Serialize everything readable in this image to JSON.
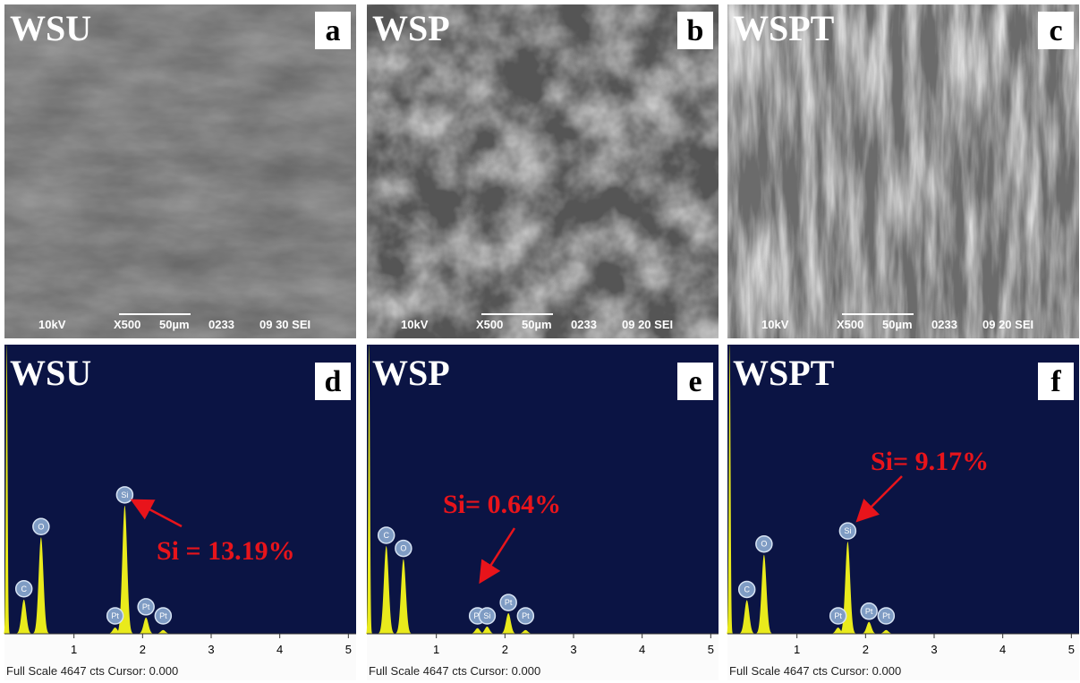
{
  "figure": {
    "sem_panels": [
      {
        "letter": "a",
        "sample": "WSU",
        "caption": [
          "10kV",
          "X500",
          "50µm",
          "0233",
          "09 30 SEI"
        ]
      },
      {
        "letter": "b",
        "sample": "WSP",
        "caption": [
          "10kV",
          "X500",
          "50µm",
          "0233",
          "09 20 SEI"
        ]
      },
      {
        "letter": "c",
        "sample": "WSPT",
        "caption": [
          "10kV",
          "X500",
          "50µm",
          "0233",
          "09 20 SEI"
        ]
      }
    ],
    "eds_panels": [
      {
        "letter": "d",
        "sample": "WSU",
        "annotation": "Si = 13.19%",
        "footer": "Full Scale 4647 cts Cursor: 0.000",
        "xlim": [
          0,
          5.1
        ],
        "ylim": [
          0,
          4647
        ],
        "xticks": [
          1,
          2,
          3,
          4,
          5
        ],
        "peaks": [
          {
            "label": null,
            "x": 0.02,
            "counts": 4647
          },
          {
            "label": "C",
            "x": 0.27,
            "counts": 550
          },
          {
            "label": "O",
            "x": 0.52,
            "counts": 1550
          },
          {
            "label": "Pt",
            "x": 1.6,
            "counts": 100
          },
          {
            "label": "Si",
            "x": 1.74,
            "counts": 2060
          },
          {
            "label": "Pt",
            "x": 2.05,
            "counts": 260
          },
          {
            "label": "Pt",
            "x": 2.3,
            "counts": 60
          }
        ]
      },
      {
        "letter": "e",
        "sample": "WSP",
        "annotation": "Si= 0.64%",
        "footer": "Full Scale 4647 cts Cursor: 0.000",
        "xlim": [
          0,
          5.1
        ],
        "ylim": [
          0,
          4647
        ],
        "xticks": [
          1,
          2,
          3,
          4,
          5
        ],
        "peaks": [
          {
            "label": null,
            "x": 0.02,
            "counts": 4647
          },
          {
            "label": "C",
            "x": 0.27,
            "counts": 1410
          },
          {
            "label": "O",
            "x": 0.52,
            "counts": 1200
          },
          {
            "label": "Pt",
            "x": 1.6,
            "counts": 90
          },
          {
            "label": "Si",
            "x": 1.74,
            "counts": 115
          },
          {
            "label": "Pt",
            "x": 2.05,
            "counts": 330
          },
          {
            "label": "Pt",
            "x": 2.3,
            "counts": 60
          }
        ]
      },
      {
        "letter": "f",
        "sample": "WSPT",
        "annotation": "Si= 9.17%",
        "footer": "Full Scale 4647 cts Cursor: 0.000",
        "xlim": [
          0,
          5.1
        ],
        "ylim": [
          0,
          4647
        ],
        "xticks": [
          1,
          2,
          3,
          4,
          5
        ],
        "peaks": [
          {
            "label": null,
            "x": 0.02,
            "counts": 4647
          },
          {
            "label": "C",
            "x": 0.27,
            "counts": 540
          },
          {
            "label": "O",
            "x": 0.52,
            "counts": 1270
          },
          {
            "label": "Pt",
            "x": 1.6,
            "counts": 100
          },
          {
            "label": "Si",
            "x": 1.74,
            "counts": 1480
          },
          {
            "label": "Pt",
            "x": 2.05,
            "counts": 190
          },
          {
            "label": "Pt",
            "x": 2.3,
            "counts": 60
          }
        ]
      }
    ]
  }
}
